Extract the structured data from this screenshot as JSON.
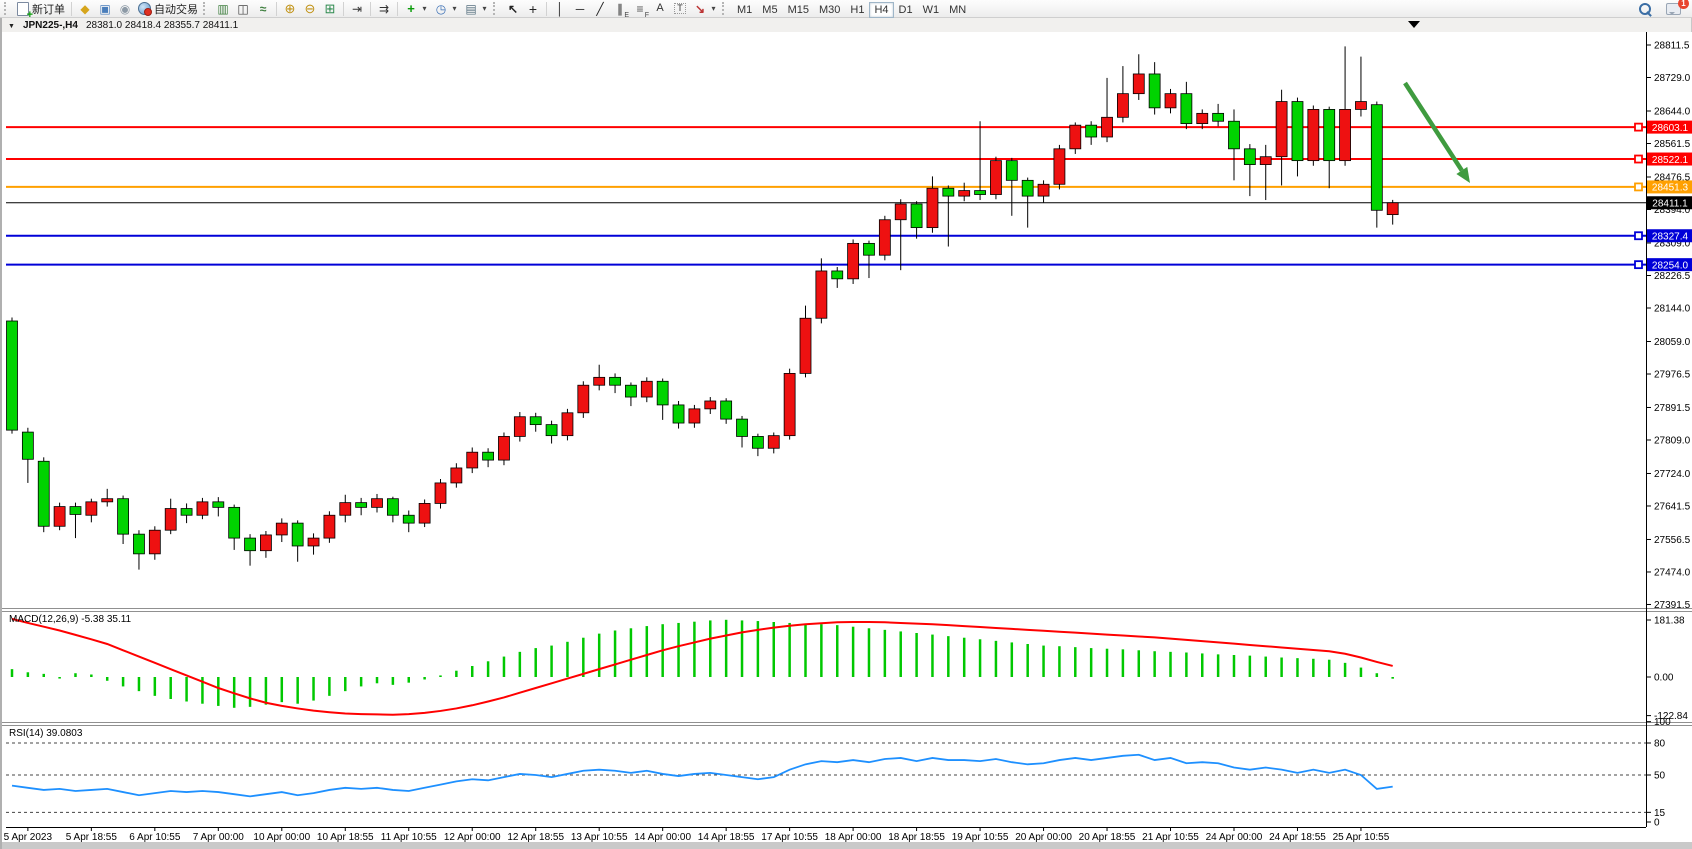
{
  "toolbar": {
    "new_order_label": "新订单",
    "auto_trading_label": "自动交易",
    "chat_badge": "1",
    "timeframes": [
      "M1",
      "M5",
      "M15",
      "M30",
      "H1",
      "H4",
      "D1",
      "W1",
      "MN"
    ],
    "active_timeframe": "H4"
  },
  "window": {
    "symbol_period": "JPN225-,H4",
    "ohlc": "28381.0 28418.4 28355.7 28411.1"
  },
  "chart_data": {
    "type": "candlestick",
    "symbol": "JPN225-",
    "period": "H4",
    "colors": {
      "bull_candle": "#ee1111",
      "bear_candle": "#00d300",
      "candle_outline": "#000000",
      "macd_hist": "#00c800",
      "macd_signal": "#ff0000",
      "rsi_line": "#1e90ff",
      "resistance_line": "#ff0000",
      "pivot_line": "#ffa000",
      "price_line": "#000000",
      "support_line": "#0000d8",
      "annotation_arrow": "#3f9b3f"
    },
    "price_axis_ticks": [
      28811.5,
      28729.0,
      28644.0,
      28561.5,
      28476.5,
      28394.0,
      28309.0,
      28226.5,
      28144.0,
      28059.0,
      27976.5,
      27891.5,
      27809.0,
      27724.0,
      27641.5,
      27556.5,
      27474.0,
      27391.5
    ],
    "time_labels": [
      "5 Apr 2023",
      "5 Apr 18:55",
      "6 Apr 10:55",
      "7 Apr 00:00",
      "10 Apr 00:00",
      "10 Apr 18:55",
      "11 Apr 10:55",
      "12 Apr 00:00",
      "12 Apr 18:55",
      "13 Apr 10:55",
      "14 Apr 00:00",
      "14 Apr 18:55",
      "17 Apr 10:55",
      "18 Apr 00:00",
      "18 Apr 18:55",
      "19 Apr 10:55",
      "20 Apr 00:00",
      "20 Apr 18:55",
      "21 Apr 10:55",
      "24 Apr 00:00",
      "24 Apr 18:55",
      "25 Apr 10:55"
    ],
    "hlines": [
      {
        "price": 28603.1,
        "label": "28603.1",
        "color": "#ff0000",
        "width": 2
      },
      {
        "price": 28522.1,
        "label": "28522.1",
        "color": "#ff0000",
        "width": 2
      },
      {
        "price": 28451.3,
        "label": "28451.3",
        "color": "#ffa000",
        "width": 2
      },
      {
        "price": 28411.1,
        "label": "28411.1",
        "color": "#000000",
        "width": 1,
        "is_price_line": true
      },
      {
        "price": 28327.4,
        "label": "28327.4",
        "color": "#0000d8",
        "width": 2
      },
      {
        "price": 28254.0,
        "label": "28254.0",
        "color": "#0000d8",
        "width": 2
      }
    ],
    "candles": [
      [
        28111,
        28120,
        27825,
        27834
      ],
      [
        27829,
        27840,
        27700,
        27760
      ],
      [
        27755,
        27765,
        27575,
        27590
      ],
      [
        27590,
        27650,
        27580,
        27640
      ],
      [
        27640,
        27650,
        27560,
        27620
      ],
      [
        27618,
        27660,
        27600,
        27652
      ],
      [
        27652,
        27685,
        27640,
        27660
      ],
      [
        27660,
        27668,
        27545,
        27570
      ],
      [
        27570,
        27580,
        27480,
        27520
      ],
      [
        27520,
        27590,
        27505,
        27580
      ],
      [
        27580,
        27660,
        27570,
        27635
      ],
      [
        27635,
        27648,
        27598,
        27618
      ],
      [
        27618,
        27662,
        27608,
        27652
      ],
      [
        27652,
        27664,
        27615,
        27638
      ],
      [
        27638,
        27645,
        27530,
        27560
      ],
      [
        27560,
        27570,
        27490,
        27528
      ],
      [
        27528,
        27578,
        27510,
        27568
      ],
      [
        27568,
        27610,
        27550,
        27598
      ],
      [
        27598,
        27605,
        27500,
        27540
      ],
      [
        27540,
        27572,
        27518,
        27560
      ],
      [
        27560,
        27628,
        27548,
        27618
      ],
      [
        27618,
        27670,
        27600,
        27650
      ],
      [
        27650,
        27662,
        27618,
        27638
      ],
      [
        27638,
        27672,
        27625,
        27660
      ],
      [
        27660,
        27665,
        27600,
        27618
      ],
      [
        27618,
        27630,
        27575,
        27598
      ],
      [
        27598,
        27658,
        27588,
        27648
      ],
      [
        27648,
        27710,
        27635,
        27700
      ],
      [
        27700,
        27750,
        27688,
        27738
      ],
      [
        27738,
        27790,
        27725,
        27778
      ],
      [
        27778,
        27788,
        27740,
        27758
      ],
      [
        27758,
        27828,
        27745,
        27818
      ],
      [
        27818,
        27880,
        27805,
        27868
      ],
      [
        27868,
        27878,
        27830,
        27848
      ],
      [
        27848,
        27858,
        27800,
        27820
      ],
      [
        27820,
        27888,
        27808,
        27878
      ],
      [
        27878,
        27958,
        27865,
        27948
      ],
      [
        27948,
        28000,
        27935,
        27968
      ],
      [
        27968,
        27978,
        27928,
        27948
      ],
      [
        27948,
        27955,
        27895,
        27918
      ],
      [
        27918,
        27968,
        27905,
        27958
      ],
      [
        27958,
        27965,
        27860,
        27898
      ],
      [
        27898,
        27908,
        27838,
        27852
      ],
      [
        27852,
        27898,
        27840,
        27888
      ],
      [
        27888,
        27918,
        27875,
        27908
      ],
      [
        27908,
        27915,
        27850,
        27862
      ],
      [
        27862,
        27870,
        27790,
        27818
      ],
      [
        27818,
        27825,
        27768,
        27788
      ],
      [
        27788,
        27828,
        27775,
        27820
      ],
      [
        27820,
        27990,
        27810,
        27978
      ],
      [
        27978,
        28150,
        27968,
        28118
      ],
      [
        28118,
        28270,
        28105,
        28238
      ],
      [
        28238,
        28248,
        28195,
        28218
      ],
      [
        28218,
        28318,
        28205,
        28308
      ],
      [
        28308,
        28315,
        28220,
        28278
      ],
      [
        28278,
        28378,
        28265,
        28368
      ],
      [
        28368,
        28420,
        28240,
        28408
      ],
      [
        28408,
        28415,
        28320,
        28348
      ],
      [
        28348,
        28478,
        28335,
        28448
      ],
      [
        28448,
        28455,
        28300,
        28428
      ],
      [
        28428,
        28462,
        28415,
        28442
      ],
      [
        28442,
        28618,
        28418,
        28432
      ],
      [
        28432,
        28528,
        28420,
        28518
      ],
      [
        28518,
        28525,
        28378,
        28468
      ],
      [
        28468,
        28475,
        28348,
        28428
      ],
      [
        28428,
        28468,
        28412,
        28458
      ],
      [
        28458,
        28558,
        28445,
        28548
      ],
      [
        28548,
        28615,
        28535,
        28608
      ],
      [
        28608,
        28618,
        28558,
        28578
      ],
      [
        28578,
        28728,
        28565,
        28628
      ],
      [
        28628,
        28758,
        28615,
        28688
      ],
      [
        28688,
        28788,
        28672,
        28738
      ],
      [
        28738,
        28768,
        28635,
        28652
      ],
      [
        28652,
        28700,
        28638,
        28688
      ],
      [
        28688,
        28718,
        28598,
        28612
      ],
      [
        28612,
        28648,
        28598,
        28638
      ],
      [
        28638,
        28662,
        28605,
        28618
      ],
      [
        28618,
        28648,
        28468,
        28548
      ],
      [
        28548,
        28560,
        28428,
        28508
      ],
      [
        28508,
        28558,
        28418,
        28528
      ],
      [
        28528,
        28698,
        28455,
        28668
      ],
      [
        28668,
        28678,
        28478,
        28518
      ],
      [
        28518,
        28658,
        28505,
        28648
      ],
      [
        28648,
        28655,
        28448,
        28518
      ],
      [
        28518,
        28808,
        28505,
        28648
      ],
      [
        28648,
        28782,
        28630,
        28668
      ],
      [
        28660,
        28668,
        28348,
        28392
      ],
      [
        28381,
        28418.4,
        28355.7,
        28411.1
      ]
    ],
    "macd": {
      "label": "MACD(12,26,9)",
      "values_label": "-5.38 35.11",
      "axis_ticks": [
        181.38,
        0.0,
        -122.84
      ],
      "hist": [
        25,
        15,
        10,
        -5,
        12,
        8,
        -12,
        -30,
        -45,
        -60,
        -70,
        -78,
        -85,
        -92,
        -98,
        -95,
        -88,
        -80,
        -85,
        -75,
        -60,
        -45,
        -30,
        -20,
        -25,
        -18,
        -8,
        5,
        20,
        35,
        50,
        65,
        80,
        92,
        100,
        112,
        125,
        138,
        148,
        155,
        162,
        168,
        172,
        176,
        180,
        182,
        180,
        178,
        175,
        172,
        170,
        168,
        165,
        160,
        155,
        150,
        145,
        140,
        135,
        130,
        125,
        120,
        115,
        110,
        105,
        100,
        98,
        95,
        92,
        90,
        88,
        85,
        82,
        80,
        78,
        75,
        72,
        70,
        68,
        65,
        62,
        60,
        58,
        55,
        45,
        30,
        12,
        -5.4
      ],
      "signal": [
        185,
        172,
        160,
        148,
        134,
        120,
        105,
        85,
        65,
        45,
        25,
        5,
        -15,
        -35,
        -52,
        -68,
        -82,
        -92,
        -100,
        -107,
        -112,
        -116,
        -118,
        -119,
        -120,
        -118,
        -114,
        -108,
        -100,
        -90,
        -78,
        -65,
        -50,
        -35,
        -20,
        -5,
        10,
        25,
        40,
        55,
        70,
        85,
        98,
        110,
        122,
        132,
        142,
        150,
        157,
        163,
        168,
        171,
        174,
        175,
        175,
        174,
        172,
        170,
        168,
        165,
        162,
        159,
        156,
        153,
        150,
        147,
        144,
        141,
        138,
        135,
        132,
        129,
        126,
        122,
        118,
        114,
        110,
        106,
        102,
        98,
        94,
        90,
        86,
        82,
        74,
        62,
        48,
        35.11
      ]
    },
    "rsi": {
      "label": "RSI(14)",
      "value_label": "39.0803",
      "axis_ticks": [
        100,
        80,
        50,
        15,
        0
      ],
      "dashed_levels": [
        80,
        50,
        15
      ],
      "values": [
        40,
        38,
        36,
        37,
        35,
        36,
        37,
        34,
        31,
        33,
        35,
        34,
        35,
        34,
        32,
        30,
        32,
        34,
        31,
        33,
        36,
        38,
        37,
        38,
        36,
        35,
        38,
        41,
        44,
        46,
        45,
        48,
        51,
        50,
        48,
        51,
        54,
        55,
        54,
        52,
        54,
        51,
        49,
        51,
        52,
        50,
        48,
        46,
        48,
        55,
        60,
        63,
        62,
        64,
        62,
        65,
        66,
        63,
        66,
        64,
        64,
        63,
        65,
        62,
        60,
        61,
        64,
        66,
        64,
        66,
        68,
        69,
        64,
        66,
        61,
        62,
        61,
        57,
        55,
        57,
        55,
        52,
        55,
        52,
        55,
        50,
        37,
        39.08
      ]
    },
    "annotation_arrow": {
      "from": [
        1403,
        83
      ],
      "to": [
        1468,
        183
      ],
      "color": "#3f9b3f"
    }
  }
}
